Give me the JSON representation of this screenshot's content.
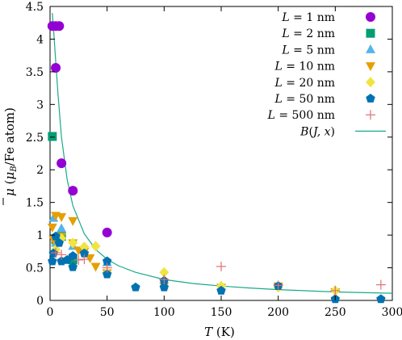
{
  "chart_data": {
    "type": "scatter",
    "xlabel": "T (K)",
    "ylabel": "μ̄ (μB/Fe atom)",
    "xlim": [
      0,
      300
    ],
    "ylim": [
      0,
      4.5
    ],
    "xticks": [
      "0",
      "50",
      "100",
      "150",
      "200",
      "250",
      "300"
    ],
    "yticks": [
      "0",
      "0.5",
      "1",
      "1.5",
      "2",
      "2.5",
      "3",
      "3.5",
      "4",
      "4.5"
    ],
    "grid": false,
    "legend_position": "top-right",
    "series": [
      {
        "name": "L = 1 nm",
        "marker": "circle",
        "color": "#9400d3",
        "points": [
          [
            2,
            4.2
          ],
          [
            5,
            4.2
          ],
          [
            8,
            4.2
          ],
          [
            5,
            3.56
          ],
          [
            10,
            2.1
          ],
          [
            20,
            1.68
          ],
          [
            50,
            1.04
          ]
        ]
      },
      {
        "name": "L = 2 nm",
        "marker": "square",
        "color": "#009e73",
        "points": [
          [
            2,
            2.51
          ],
          [
            5,
            0.93
          ],
          [
            10,
            0.98
          ],
          [
            20,
            0.62
          ]
        ]
      },
      {
        "name": "L = 5 nm",
        "marker": "triangle-up",
        "color": "#56b4e9",
        "points": [
          [
            3,
            1.26
          ],
          [
            5,
            0.88
          ],
          [
            10,
            1.1
          ],
          [
            20,
            0.83
          ],
          [
            50,
            0.58
          ]
        ]
      },
      {
        "name": "L = 10 nm",
        "marker": "triangle-down",
        "color": "#e69f00",
        "points": [
          [
            2,
            1.12
          ],
          [
            3,
            0.93
          ],
          [
            5,
            1.3
          ],
          [
            10,
            1.28
          ],
          [
            20,
            1.22
          ],
          [
            10,
            0.98
          ],
          [
            20,
            0.88
          ],
          [
            25,
            0.77
          ],
          [
            30,
            0.75
          ],
          [
            35,
            0.65
          ],
          [
            40,
            0.52
          ],
          [
            50,
            0.42
          ],
          [
            100,
            0.22
          ],
          [
            150,
            0.2
          ],
          [
            200,
            0.22
          ],
          [
            250,
            0.13
          ]
        ]
      },
      {
        "name": "L = 20 nm",
        "marker": "diamond",
        "color": "#f0e442",
        "points": [
          [
            5,
            0.78
          ],
          [
            10,
            0.95
          ],
          [
            20,
            0.88
          ],
          [
            30,
            0.82
          ],
          [
            40,
            0.83
          ],
          [
            50,
            0.42
          ],
          [
            100,
            0.43
          ],
          [
            150,
            0.22
          ],
          [
            200,
            0.2
          ],
          [
            250,
            0.15
          ]
        ]
      },
      {
        "name": "L = 50 nm",
        "marker": "pentagon",
        "color": "#0072b2",
        "points": [
          [
            2,
            0.6
          ],
          [
            3,
            0.72
          ],
          [
            5,
            0.98
          ],
          [
            8,
            0.88
          ],
          [
            10,
            0.6
          ],
          [
            15,
            0.62
          ],
          [
            20,
            0.68
          ],
          [
            20,
            0.51
          ],
          [
            30,
            0.72
          ],
          [
            50,
            0.6
          ],
          [
            50,
            0.4
          ],
          [
            75,
            0.2
          ],
          [
            100,
            0.3
          ],
          [
            100,
            0.2
          ],
          [
            150,
            0.15
          ],
          [
            200,
            0.22
          ],
          [
            250,
            0.02
          ],
          [
            290,
            0.02
          ]
        ]
      },
      {
        "name": "L = 500 nm",
        "marker": "plus",
        "color": "#e07070",
        "points": [
          [
            5,
            0.73
          ],
          [
            10,
            0.7
          ],
          [
            25,
            0.62
          ],
          [
            30,
            0.63
          ],
          [
            50,
            0.5
          ],
          [
            100,
            0.32
          ],
          [
            150,
            0.52
          ],
          [
            200,
            0.23
          ],
          [
            250,
            0.15
          ],
          [
            290,
            0.24
          ]
        ]
      },
      {
        "name": "B(J, x)",
        "marker": "line",
        "color": "#1aaa8a",
        "function": "curie-like decay",
        "points": [
          [
            2,
            4.4
          ],
          [
            3,
            4.17
          ],
          [
            5,
            3.65
          ],
          [
            7,
            3.15
          ],
          [
            10,
            2.5
          ],
          [
            15,
            1.85
          ],
          [
            20,
            1.45
          ],
          [
            30,
            1.02
          ],
          [
            40,
            0.78
          ],
          [
            50,
            0.63
          ],
          [
            60,
            0.53
          ],
          [
            75,
            0.43
          ],
          [
            100,
            0.32
          ],
          [
            125,
            0.26
          ],
          [
            150,
            0.22
          ],
          [
            175,
            0.19
          ],
          [
            200,
            0.165
          ],
          [
            250,
            0.13
          ],
          [
            300,
            0.11
          ]
        ]
      }
    ]
  }
}
